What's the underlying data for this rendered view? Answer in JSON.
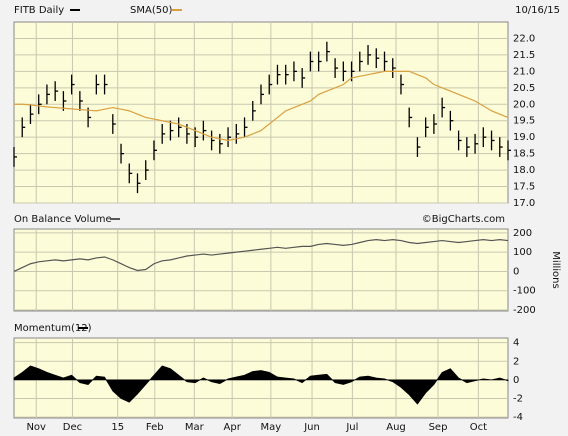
{
  "chart_data": [
    {
      "type": "ohlc",
      "date": "10/16/15",
      "series": [
        {
          "name": "FITB Daily",
          "color": "#000000",
          "high": [
            18.7,
            19.6,
            20.0,
            20.3,
            20.6,
            20.7,
            20.4,
            20.9,
            20.4,
            19.9,
            20.9,
            20.9,
            19.7,
            18.8,
            18.2,
            17.9,
            18.3,
            18.9,
            19.4,
            19.5,
            19.6,
            19.4,
            19.3,
            19.5,
            19.2,
            19.1,
            19.3,
            19.4,
            19.6,
            20.1,
            20.6,
            20.9,
            21.2,
            21.2,
            21.3,
            21.1,
            21.6,
            21.6,
            21.9,
            21.4,
            21.3,
            21.3,
            21.6,
            21.8,
            21.7,
            21.6,
            21.4,
            20.9,
            19.9,
            19.0,
            19.6,
            19.7,
            20.2,
            19.8,
            19.2,
            19.0,
            19.1,
            19.3,
            19.2,
            19.0,
            18.9
          ],
          "low": [
            18.1,
            19.0,
            19.4,
            19.7,
            20.0,
            20.1,
            19.8,
            20.3,
            19.8,
            19.3,
            20.3,
            20.3,
            19.1,
            18.2,
            17.6,
            17.3,
            17.7,
            18.3,
            18.8,
            18.9,
            19.0,
            18.8,
            18.7,
            18.9,
            18.6,
            18.5,
            18.7,
            18.8,
            19.0,
            19.5,
            20.0,
            20.3,
            20.6,
            20.6,
            20.7,
            20.5,
            21.0,
            21.0,
            21.3,
            20.8,
            20.7,
            20.7,
            21.0,
            21.2,
            21.1,
            21.0,
            20.8,
            20.3,
            19.3,
            18.4,
            19.0,
            19.1,
            19.6,
            19.2,
            18.6,
            18.4,
            18.5,
            18.7,
            18.6,
            18.4,
            18.3
          ],
          "close": [
            18.4,
            19.3,
            19.7,
            20.0,
            20.3,
            20.4,
            20.1,
            20.6,
            20.1,
            19.6,
            20.6,
            20.6,
            19.4,
            18.5,
            17.9,
            17.6,
            18.0,
            18.6,
            19.1,
            19.2,
            19.3,
            19.1,
            19.0,
            19.2,
            18.9,
            18.8,
            19.0,
            19.1,
            19.3,
            19.8,
            20.3,
            20.6,
            20.9,
            20.9,
            21.0,
            20.8,
            21.3,
            21.3,
            21.6,
            21.1,
            21.0,
            21.0,
            21.3,
            21.5,
            21.4,
            21.3,
            21.1,
            20.6,
            19.6,
            18.7,
            19.3,
            19.4,
            19.9,
            19.5,
            18.9,
            18.7,
            18.8,
            19.0,
            18.9,
            18.7,
            18.6
          ]
        },
        {
          "name": "SMA(50)",
          "color": "#d9a040",
          "values": [
            20.0,
            20.0,
            19.98,
            19.95,
            19.92,
            19.9,
            19.88,
            19.86,
            19.84,
            19.82,
            19.8,
            19.85,
            19.9,
            19.85,
            19.8,
            19.7,
            19.6,
            19.55,
            19.5,
            19.45,
            19.4,
            19.3,
            19.2,
            19.1,
            19.0,
            18.95,
            18.9,
            18.95,
            19.0,
            19.1,
            19.2,
            19.4,
            19.6,
            19.8,
            19.9,
            20.0,
            20.1,
            20.3,
            20.4,
            20.5,
            20.6,
            20.8,
            20.85,
            20.9,
            20.95,
            21.0,
            21.0,
            21.0,
            21.0,
            20.9,
            20.8,
            20.6,
            20.5,
            20.4,
            20.3,
            20.2,
            20.1,
            19.95,
            19.8,
            19.7,
            19.6
          ]
        }
      ],
      "ylim": [
        17,
        22.5
      ],
      "yticks": [
        {
          "value": 22,
          "label": "22.0"
        },
        21.5,
        {
          "value": 21,
          "label": "21.0"
        },
        20.5,
        {
          "value": 20,
          "label": "20.0"
        },
        19.5,
        {
          "value": 19,
          "label": "19.0"
        },
        18.5,
        {
          "value": 18,
          "label": "18.0"
        },
        17.5,
        {
          "value": 17,
          "label": "17.0"
        }
      ],
      "xlim": [
        0,
        60
      ],
      "grid": true
    },
    {
      "type": "line",
      "source": "©BigCharts.com",
      "ylabel": "Millions",
      "series": [
        {
          "name": "On Balance Volume",
          "color": "#555555",
          "values": [
            0,
            20,
            40,
            50,
            55,
            60,
            55,
            60,
            65,
            60,
            70,
            75,
            60,
            40,
            20,
            5,
            10,
            40,
            55,
            60,
            70,
            80,
            85,
            90,
            85,
            90,
            95,
            100,
            105,
            110,
            115,
            120,
            125,
            120,
            125,
            130,
            130,
            140,
            145,
            140,
            135,
            140,
            150,
            160,
            165,
            160,
            165,
            160,
            150,
            145,
            150,
            155,
            160,
            155,
            150,
            155,
            160,
            165,
            160,
            165,
            160
          ]
        }
      ],
      "ylim": [
        -205,
        220
      ],
      "yticks": [
        200,
        100,
        0,
        -100,
        -200
      ],
      "xlim": [
        0,
        60
      ],
      "grid": true
    },
    {
      "type": "area",
      "series": [
        {
          "name": "Momentum(12)",
          "color": "#000000",
          "values": [
            0.2,
            0.8,
            1.5,
            1.2,
            0.8,
            0.5,
            0.2,
            0.5,
            -0.3,
            -0.5,
            0.4,
            0.3,
            -1.2,
            -2.0,
            -2.4,
            -1.5,
            -0.5,
            0.5,
            1.5,
            1.2,
            0.5,
            -0.2,
            -0.3,
            0.2,
            -0.2,
            -0.4,
            0.1,
            0.3,
            0.5,
            0.9,
            1.0,
            0.8,
            0.3,
            0.2,
            0.1,
            -0.3,
            0.4,
            0.5,
            0.6,
            -0.3,
            -0.5,
            -0.2,
            0.3,
            0.4,
            0.2,
            0.1,
            -0.2,
            -0.8,
            -1.6,
            -2.6,
            -1.4,
            -0.5,
            0.8,
            1.2,
            0.2,
            -0.3,
            -0.1,
            0.1,
            0,
            0.2,
            -0.1
          ]
        }
      ],
      "ylim": [
        -4.1,
        4.5
      ],
      "yticks": [
        4,
        2,
        0,
        -2,
        -4
      ],
      "xlim": [
        0,
        60
      ],
      "grid": true,
      "xticks": [
        {
          "value": 2.7,
          "label": "Nov"
        },
        {
          "value": 7.1,
          "label": "Dec"
        },
        {
          "value": 12.6,
          "label": "15"
        },
        {
          "value": 17.1,
          "label": "Feb"
        },
        {
          "value": 21.9,
          "label": "Mar"
        },
        {
          "value": 26.5,
          "label": "Apr"
        },
        {
          "value": 31.2,
          "label": "May"
        },
        {
          "value": 36.2,
          "label": "Jun"
        },
        {
          "value": 41.1,
          "label": "Jul"
        },
        {
          "value": 46.4,
          "label": "Aug"
        },
        {
          "value": 51.5,
          "label": "Sep"
        },
        {
          "value": 56.4,
          "label": "Oct"
        }
      ]
    }
  ]
}
